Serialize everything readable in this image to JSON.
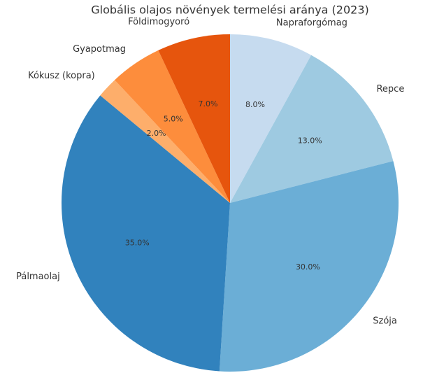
{
  "chart_data": {
    "type": "pie",
    "title": "Globális olajos növények termelési aránya (2023)",
    "categories": [
      "Napraforgómag",
      "Repce",
      "Szója",
      "Pálmaolaj",
      "Kókusz (kopra)",
      "Gyapotmag",
      "Földimogyoró"
    ],
    "values": [
      8,
      13,
      30,
      35,
      2,
      5,
      7
    ],
    "value_labels": [
      "8.0%",
      "13.0%",
      "30.0%",
      "35.0%",
      "2.0%",
      "5.0%",
      "7.0%"
    ],
    "colors": [
      "#c6dbef",
      "#9ecae1",
      "#6baed6",
      "#3182bd",
      "#fdae6b",
      "#fd8d3c",
      "#e6550d"
    ],
    "start_angle": 90,
    "direction": "clockwise"
  }
}
